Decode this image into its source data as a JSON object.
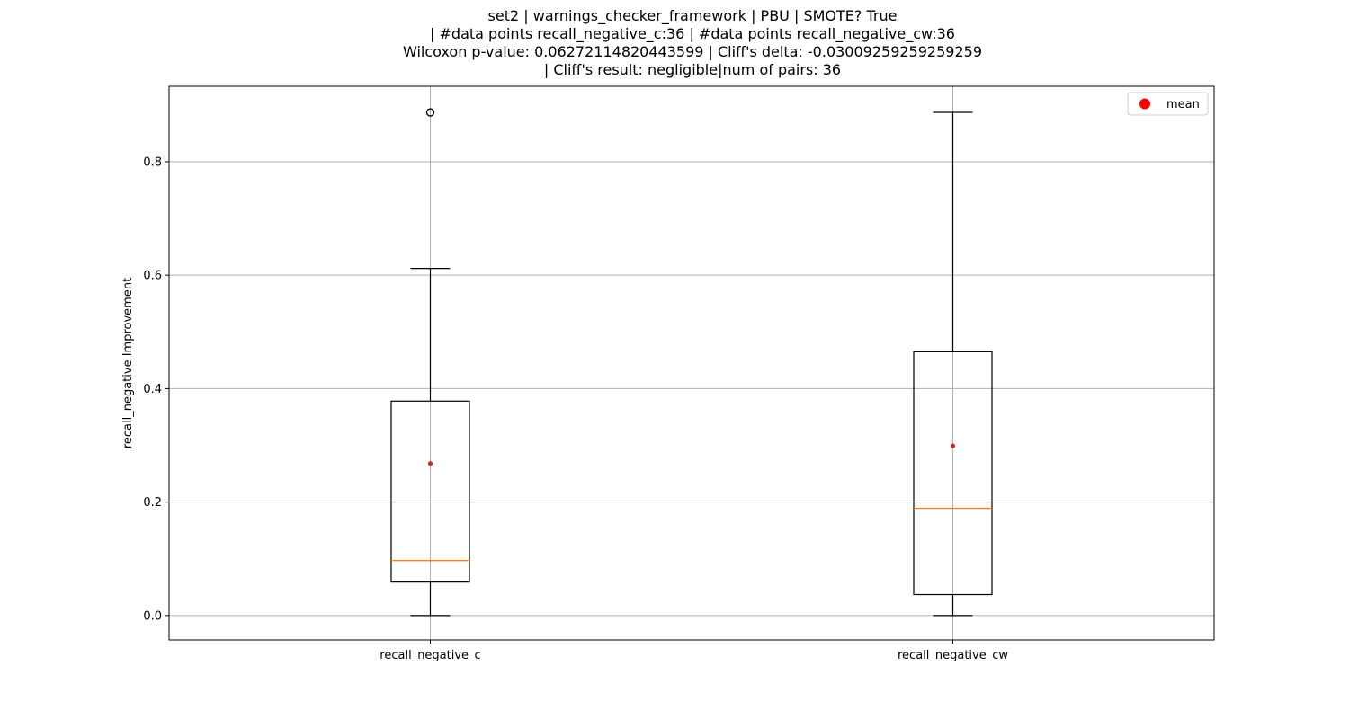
{
  "chart_data": {
    "type": "box",
    "title_lines": [
      "set2 | warnings_checker_framework | PBU | SMOTE? True",
      "| #data points recall_negative_c:36 | #data points recall_negative_cw:36",
      "Wilcoxon p-value: 0.06272114820443599 | Cliff's delta: -0.03009259259259259",
      "| Cliff's result: negligible|num of pairs: 36"
    ],
    "xlabel": "",
    "ylabel": "recall_negative Improvement",
    "ylim": [
      -0.043,
      0.933
    ],
    "yticks": [
      0.0,
      0.2,
      0.4,
      0.6,
      0.8
    ],
    "ytick_labels": [
      "0.0",
      "0.2",
      "0.4",
      "0.6",
      "0.8"
    ],
    "grid": true,
    "legend": {
      "position": "top-right",
      "entries": [
        {
          "label": "mean",
          "marker": "dot",
          "color": "#ff0000"
        }
      ]
    },
    "colors": {
      "box": "#000000",
      "median": "#ff7f0e",
      "mean": "#d62728",
      "grid": "#b0b0b0"
    },
    "boxes": [
      {
        "category": "recall_negative_c",
        "whisker_low": 0.0,
        "q1": 0.059,
        "median": 0.097,
        "q3": 0.378,
        "whisker_high": 0.612,
        "mean": 0.268,
        "outliers": [
          0.887
        ]
      },
      {
        "category": "recall_negative_cw",
        "whisker_low": 0.0,
        "q1": 0.037,
        "median": 0.189,
        "q3": 0.465,
        "whisker_high": 0.887,
        "mean": 0.299,
        "outliers": []
      }
    ]
  }
}
